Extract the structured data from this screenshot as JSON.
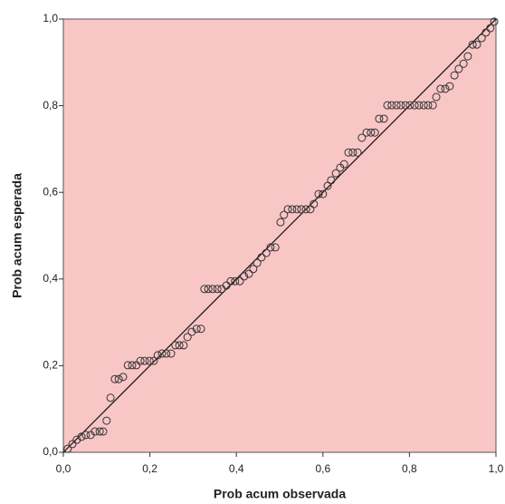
{
  "chart_data": {
    "type": "scatter",
    "xlabel": "Prob acum observada",
    "ylabel": "Prob acum esperada",
    "xlim": [
      0,
      1
    ],
    "ylim": [
      0,
      1
    ],
    "xticks": [
      {
        "value": 0,
        "label": "0,0"
      },
      {
        "value": 0.2,
        "label": "0,2"
      },
      {
        "value": 0.4,
        "label": "0,4"
      },
      {
        "value": 0.6,
        "label": "0,6"
      },
      {
        "value": 0.8,
        "label": "0,8"
      },
      {
        "value": 1,
        "label": "1,0"
      }
    ],
    "yticks": [
      {
        "value": 0,
        "label": "0,0"
      },
      {
        "value": 0.2,
        "label": "0,2"
      },
      {
        "value": 0.4,
        "label": "0,4"
      },
      {
        "value": 0.6,
        "label": "0,6"
      },
      {
        "value": 0.8,
        "label": "0,8"
      },
      {
        "value": 1,
        "label": "1,0"
      }
    ],
    "color": "#333333",
    "background": "#f9c6c6",
    "reference_line": true,
    "x": [
      0.01,
      0.021,
      0.031,
      0.042,
      0.052,
      0.063,
      0.073,
      0.084,
      0.092,
      0.1,
      0.109,
      0.119,
      0.128,
      0.138,
      0.149,
      0.159,
      0.169,
      0.178,
      0.188,
      0.199,
      0.209,
      0.218,
      0.228,
      0.238,
      0.249,
      0.259,
      0.268,
      0.278,
      0.287,
      0.297,
      0.308,
      0.318,
      0.326,
      0.335,
      0.345,
      0.356,
      0.366,
      0.377,
      0.387,
      0.397,
      0.408,
      0.418,
      0.429,
      0.439,
      0.448,
      0.458,
      0.469,
      0.479,
      0.49,
      0.502,
      0.51,
      0.519,
      0.529,
      0.54,
      0.55,
      0.561,
      0.571,
      0.579,
      0.59,
      0.6,
      0.611,
      0.619,
      0.63,
      0.64,
      0.649,
      0.659,
      0.669,
      0.68,
      0.69,
      0.701,
      0.711,
      0.72,
      0.73,
      0.741,
      0.749,
      0.759,
      0.77,
      0.78,
      0.791,
      0.801,
      0.812,
      0.822,
      0.833,
      0.843,
      0.854,
      0.862,
      0.872,
      0.883,
      0.893,
      0.904,
      0.914,
      0.925,
      0.935,
      0.946,
      0.956,
      0.967,
      0.977,
      0.987,
      0.996
    ],
    "values": [
      0.008,
      0.019,
      0.029,
      0.036,
      0.04,
      0.04,
      0.048,
      0.048,
      0.048,
      0.073,
      0.126,
      0.169,
      0.169,
      0.174,
      0.201,
      0.201,
      0.201,
      0.211,
      0.211,
      0.211,
      0.211,
      0.224,
      0.228,
      0.228,
      0.228,
      0.247,
      0.247,
      0.247,
      0.266,
      0.278,
      0.285,
      0.285,
      0.377,
      0.377,
      0.377,
      0.377,
      0.377,
      0.385,
      0.395,
      0.395,
      0.395,
      0.406,
      0.412,
      0.423,
      0.437,
      0.45,
      0.46,
      0.473,
      0.473,
      0.531,
      0.548,
      0.561,
      0.561,
      0.561,
      0.561,
      0.561,
      0.561,
      0.573,
      0.596,
      0.596,
      0.615,
      0.628,
      0.644,
      0.657,
      0.665,
      0.692,
      0.692,
      0.692,
      0.726,
      0.738,
      0.738,
      0.738,
      0.77,
      0.77,
      0.801,
      0.801,
      0.801,
      0.801,
      0.801,
      0.801,
      0.801,
      0.801,
      0.801,
      0.801,
      0.801,
      0.82,
      0.839,
      0.839,
      0.845,
      0.87,
      0.885,
      0.897,
      0.914,
      0.941,
      0.941,
      0.956,
      0.969,
      0.979,
      0.994
    ]
  }
}
